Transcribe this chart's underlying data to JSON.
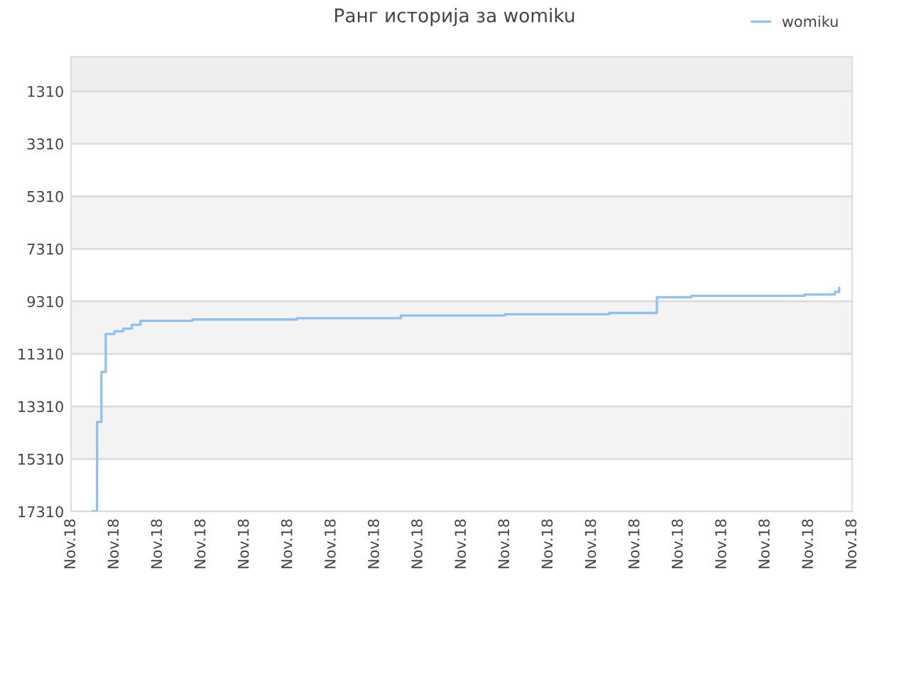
{
  "chart_data": {
    "type": "step",
    "title": "Ранг историја за womiku",
    "categories": [
      "Nov.18",
      null,
      null,
      null,
      null,
      null,
      null,
      null,
      null,
      null,
      "Nov.18",
      null,
      null,
      null,
      null,
      null,
      null,
      null,
      null,
      null,
      "Nov.18",
      null,
      null,
      null,
      null,
      null,
      null,
      null,
      null,
      null,
      "Nov.18",
      null,
      null,
      null,
      null,
      null,
      null,
      null,
      null,
      null,
      "Nov.18",
      null,
      null,
      null,
      null,
      null,
      null,
      null,
      null,
      null,
      "Nov.18",
      null,
      null,
      null,
      null,
      null,
      null,
      null,
      null,
      null,
      "Nov.18",
      null,
      null,
      null,
      null,
      null,
      null,
      null,
      null,
      null,
      "Nov.18",
      null,
      null,
      null,
      null,
      null,
      null,
      null,
      null,
      null,
      "Nov.18",
      null,
      null,
      null,
      null,
      null,
      null,
      null,
      null,
      null,
      "Nov.18",
      null,
      null,
      null,
      null,
      null,
      null,
      null,
      null,
      null,
      "Nov.18",
      null,
      null,
      null,
      null,
      null,
      null,
      null,
      null,
      null,
      "Nov.18",
      null,
      null,
      null,
      null,
      null,
      null,
      null,
      null,
      null,
      "Nov.18",
      null,
      null,
      null,
      null,
      null,
      null,
      null,
      null,
      null,
      "Nov.18",
      null,
      null,
      null,
      null,
      null,
      null,
      null,
      null,
      null,
      "Nov.18",
      null,
      null,
      null,
      null,
      null,
      null,
      null,
      null,
      null,
      "Nov.18",
      null,
      null,
      null,
      null,
      null,
      null,
      null,
      null,
      null,
      "Nov.18",
      null,
      null,
      null,
      null,
      null,
      null,
      null,
      null,
      null,
      "Nov.18",
      null,
      null,
      null,
      null,
      null,
      null,
      null,
      null,
      null,
      "Nov.18"
    ],
    "series": [
      {
        "name": "womiku",
        "color": "#90c0f0",
        "values": [
          null,
          null,
          null,
          null,
          null,
          17310,
          13900,
          12000,
          10550,
          10550,
          10450,
          10450,
          10350,
          10350,
          10200,
          10200,
          10050,
          10050,
          10050,
          10050,
          10050,
          10050,
          10050,
          10050,
          10050,
          10050,
          10050,
          10050,
          10000,
          10000,
          10000,
          10000,
          10000,
          10000,
          10000,
          10000,
          10000,
          10000,
          10000,
          10000,
          10000,
          10000,
          10000,
          10000,
          10000,
          10000,
          10000,
          10000,
          10000,
          10000,
          10000,
          10000,
          9950,
          9950,
          9950,
          9950,
          9950,
          9950,
          9950,
          9950,
          9950,
          9950,
          9950,
          9950,
          9950,
          9950,
          9950,
          9950,
          9950,
          9950,
          9950,
          9950,
          9950,
          9950,
          9950,
          9950,
          9850,
          9850,
          9850,
          9850,
          9850,
          9850,
          9850,
          9850,
          9850,
          9850,
          9850,
          9850,
          9850,
          9850,
          9850,
          9850,
          9850,
          9850,
          9850,
          9850,
          9850,
          9850,
          9850,
          9850,
          9800,
          9800,
          9800,
          9800,
          9800,
          9800,
          9800,
          9800,
          9800,
          9800,
          9800,
          9800,
          9800,
          9800,
          9800,
          9800,
          9800,
          9800,
          9800,
          9800,
          9800,
          9800,
          9800,
          9800,
          9750,
          9750,
          9750,
          9750,
          9750,
          9750,
          9750,
          9750,
          9750,
          9750,
          9750,
          9150,
          9150,
          9150,
          9150,
          9150,
          9150,
          9150,
          9150,
          9100,
          9100,
          9100,
          9100,
          9100,
          9100,
          9100,
          9100,
          9100,
          9100,
          9100,
          9100,
          9100,
          9100,
          9100,
          9100,
          9100,
          9100,
          9100,
          9100,
          9100,
          9100,
          9100,
          9100,
          9100,
          9100,
          9050,
          9050,
          9050,
          9050,
          9050,
          9050,
          9050,
          8950,
          8800,
          null,
          null,
          null
        ]
      }
    ],
    "ylim": [
      17310,
      0
    ],
    "yticks": [
      1310,
      3310,
      5310,
      7310,
      9310,
      11310,
      13310,
      15310,
      17310
    ],
    "bands": [
      {
        "axis": "y",
        "from": 0,
        "to": 1310,
        "color": "#eeeeee"
      },
      {
        "axis": "y",
        "from": 1310,
        "to": 3310,
        "color": "#f3f3f3"
      },
      {
        "axis": "y",
        "from": 5310,
        "to": 7310,
        "color": "#f3f3f3"
      },
      {
        "axis": "y",
        "from": 9310,
        "to": 11310,
        "color": "#f3f3f3"
      },
      {
        "axis": "y",
        "from": 13310,
        "to": 15310,
        "color": "#f3f3f3"
      }
    ],
    "grid": "y",
    "legend": "top right",
    "marker": "none",
    "line_style": "solid"
  }
}
